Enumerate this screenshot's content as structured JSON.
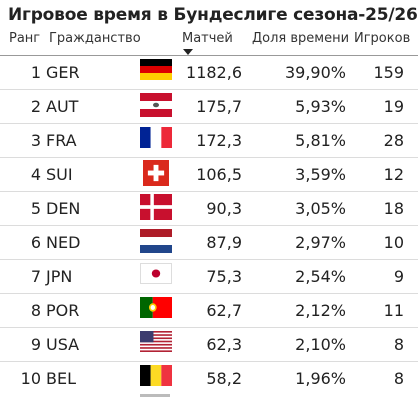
{
  "title": "Игровое время в Бундеслиге сезона-25/26",
  "headers": {
    "rank": "Ранг",
    "citizenship": "Гражданство",
    "matches": "Матчей",
    "share": "Доля времени",
    "players": "Игроков"
  },
  "rows": [
    {
      "rank": "1",
      "code": "GER",
      "matches": "1182,6",
      "share": "39,90%",
      "players": "159",
      "flag": "germany"
    },
    {
      "rank": "2",
      "code": "AUT",
      "matches": "175,7",
      "share": "5,93%",
      "players": "19",
      "flag": "austria"
    },
    {
      "rank": "3",
      "code": "FRA",
      "matches": "172,3",
      "share": "5,81%",
      "players": "28",
      "flag": "france"
    },
    {
      "rank": "4",
      "code": "SUI",
      "matches": "106,5",
      "share": "3,59%",
      "players": "12",
      "flag": "switzerland"
    },
    {
      "rank": "5",
      "code": "DEN",
      "matches": "90,3",
      "share": "3,05%",
      "players": "18",
      "flag": "denmark"
    },
    {
      "rank": "6",
      "code": "NED",
      "matches": "87,9",
      "share": "2,97%",
      "players": "10",
      "flag": "netherlands"
    },
    {
      "rank": "7",
      "code": "JPN",
      "matches": "75,3",
      "share": "2,54%",
      "players": "9",
      "flag": "japan"
    },
    {
      "rank": "8",
      "code": "POR",
      "matches": "62,7",
      "share": "2,12%",
      "players": "11",
      "flag": "portugal"
    },
    {
      "rank": "9",
      "code": "USA",
      "matches": "62,3",
      "share": "2,10%",
      "players": "8",
      "flag": "usa"
    },
    {
      "rank": "10",
      "code": "BEL",
      "matches": "58,2",
      "share": "1,96%",
      "players": "8",
      "flag": "belgium"
    }
  ],
  "sort": {
    "column": "matches",
    "direction": "descending"
  }
}
